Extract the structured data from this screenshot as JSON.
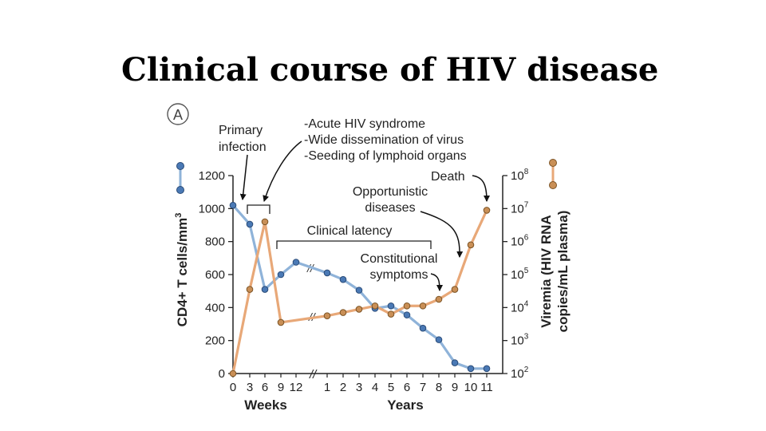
{
  "slide": {
    "title": "Clinical course of HIV disease"
  },
  "chart_data": {
    "type": "line",
    "panel_label": "A",
    "y_left": {
      "label": "CD4+ T cells/mm",
      "label_sup": "3",
      "ylim": [
        0,
        1200
      ],
      "ticks": [
        "0",
        "200",
        "400",
        "600",
        "800",
        "1000",
        "1200"
      ]
    },
    "y_right": {
      "label": [
        "Viremia (HIV RNA",
        "copies/mL plasma)"
      ],
      "scale": "log",
      "ylim": [
        2,
        8
      ],
      "tick_exponents": [
        "2",
        "3",
        "4",
        "5",
        "6",
        "7",
        "8"
      ]
    },
    "x_weeks": {
      "label": "Weeks",
      "ticks": [
        "0",
        "3",
        "6",
        "9",
        "12"
      ]
    },
    "x_years": {
      "label": "Years",
      "ticks": [
        "1",
        "2",
        "3",
        "4",
        "5",
        "6",
        "7",
        "8",
        "9",
        "10",
        "11"
      ]
    },
    "axis_break": "//",
    "colors": {
      "cd4": "#4a79b5",
      "cd4_line": "#8fb3d9",
      "viremia": "#c98f56",
      "viremia_line": "#e8a878"
    },
    "series": [
      {
        "key": "cd4",
        "points": [
          {
            "x": "0 weeks",
            "y": 1020
          },
          {
            "x": "3 weeks",
            "y": 905
          },
          {
            "x": "6 weeks",
            "y": 510
          },
          {
            "x": "9 weeks",
            "y": 600
          },
          {
            "x": "12 weeks",
            "y": 675
          },
          {
            "x": "1 years",
            "y": 610
          },
          {
            "x": "2 years",
            "y": 570
          },
          {
            "x": "3 years",
            "y": 505
          },
          {
            "x": "4 years",
            "y": 395
          },
          {
            "x": "5 years",
            "y": 410
          },
          {
            "x": "6 years",
            "y": 355
          },
          {
            "x": "7 years",
            "y": 275
          },
          {
            "x": "8 years",
            "y": 205
          },
          {
            "x": "9 years",
            "y": 65
          },
          {
            "x": "10 years",
            "y": 30
          },
          {
            "x": "11 years",
            "y": 30
          }
        ]
      },
      {
        "key": "viremia",
        "points": [
          {
            "x": "0 weeks",
            "y": 2.0
          },
          {
            "x": "3 weeks",
            "y": 4.55
          },
          {
            "x": "6 weeks",
            "y": 6.6
          },
          {
            "x": "9 weeks",
            "y": 3.55
          },
          {
            "x": "1 years",
            "y": 3.75
          },
          {
            "x": "2 years",
            "y": 3.85
          },
          {
            "x": "3 years",
            "y": 3.95
          },
          {
            "x": "4 years",
            "y": 4.05
          },
          {
            "x": "5 years",
            "y": 3.8
          },
          {
            "x": "6 years",
            "y": 4.05
          },
          {
            "x": "7 years",
            "y": 4.05
          },
          {
            "x": "8 years",
            "y": 4.25
          },
          {
            "x": "9 years",
            "y": 4.55
          },
          {
            "x": "10 years",
            "y": 5.9
          },
          {
            "x": "11 years",
            "y": 6.95
          }
        ]
      }
    ],
    "annotations": {
      "primary_infection": [
        "Primary",
        "infection"
      ],
      "acute": [
        "-Acute HIV syndrome",
        "-Wide dissemination of virus",
        "-Seeding of lymphoid organs"
      ],
      "death": "Death",
      "opportunistic": [
        "Opportunistic",
        "diseases"
      ],
      "latency": "Clinical latency",
      "constitutional": [
        "Constitutional",
        "symptoms"
      ]
    }
  }
}
